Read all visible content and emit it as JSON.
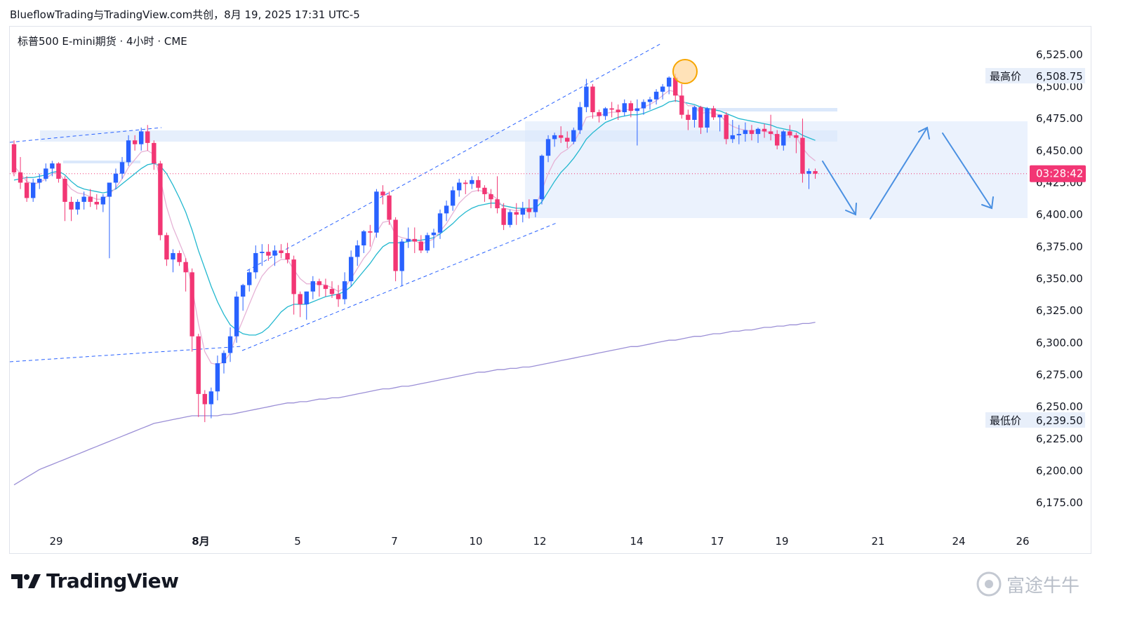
{
  "header": {
    "title": "BlueflowTrading与TradingView.com共创，8月 19, 2025 17:31 UTC-5"
  },
  "symbol_line": "标普500 E-mini期货 · 4小时 · CME",
  "price_axis": {
    "ticks": [
      "6,525.00",
      "6,500.00",
      "6,475.00",
      "6,450.00",
      "6,425.00",
      "6,400.00",
      "6,375.00",
      "6,350.00",
      "6,325.00",
      "6,300.00",
      "6,275.00",
      "6,250.00",
      "6,225.00",
      "6,200.00",
      "6,175.00"
    ],
    "high_label": "最高价",
    "high_value": "6,508.75",
    "low_label": "最低价",
    "low_value": "6,239.50",
    "current_label": "03:28:42"
  },
  "time_axis": {
    "labels": [
      "29",
      "8月",
      "5",
      "7",
      "10",
      "12",
      "14",
      "17",
      "19",
      "21",
      "24",
      "26"
    ]
  },
  "footer": {
    "logo_text": "TradingView",
    "watermark_text": "富途牛牛"
  },
  "colors": {
    "up": "#2962ff",
    "down": "#f23674",
    "ema_fast": "#e6b3d6",
    "ema_mid": "#22b8cf",
    "ema_slow": "#9b8fd6",
    "zone": "#dbe8fb",
    "arrow": "#4a90e2",
    "marker": "#f7a600"
  },
  "chart_data": {
    "type": "candlestick",
    "ylim": [
      6160,
      6535
    ],
    "candles": [
      [
        6455,
        6458,
        6430,
        6433
      ],
      [
        6433,
        6445,
        6420,
        6425
      ],
      [
        6425,
        6430,
        6410,
        6413
      ],
      [
        6413,
        6428,
        6410,
        6425
      ],
      [
        6425,
        6432,
        6420,
        6428
      ],
      [
        6428,
        6440,
        6426,
        6436
      ],
      [
        6436,
        6442,
        6430,
        6440
      ],
      [
        6440,
        6441,
        6425,
        6428
      ],
      [
        6428,
        6430,
        6395,
        6410
      ],
      [
        6410,
        6414,
        6395,
        6404
      ],
      [
        6404,
        6412,
        6400,
        6410
      ],
      [
        6410,
        6418,
        6404,
        6414
      ],
      [
        6414,
        6420,
        6406,
        6410
      ],
      [
        6410,
        6416,
        6404,
        6408
      ],
      [
        6408,
        6416,
        6402,
        6414
      ],
      [
        6414,
        6422,
        6366,
        6425
      ],
      [
        6425,
        6436,
        6420,
        6432
      ],
      [
        6432,
        6445,
        6428,
        6441
      ],
      [
        6441,
        6462,
        6438,
        6458
      ],
      [
        6458,
        6462,
        6450,
        6455
      ],
      [
        6455,
        6468,
        6450,
        6465
      ],
      [
        6465,
        6470,
        6450,
        6456
      ],
      [
        6456,
        6458,
        6435,
        6440
      ],
      [
        6440,
        6442,
        6380,
        6384
      ],
      [
        6384,
        6386,
        6360,
        6365
      ],
      [
        6365,
        6373,
        6355,
        6370
      ],
      [
        6370,
        6372,
        6360,
        6363
      ],
      [
        6363,
        6366,
        6340,
        6355
      ],
      [
        6355,
        6358,
        6293,
        6305
      ],
      [
        6305,
        6307,
        6242,
        6260
      ],
      [
        6260,
        6263,
        6238,
        6252
      ],
      [
        6252,
        6265,
        6241,
        6262
      ],
      [
        6262,
        6290,
        6255,
        6284
      ],
      [
        6284,
        6294,
        6276,
        6292
      ],
      [
        6292,
        6312,
        6285,
        6305
      ],
      [
        6305,
        6340,
        6300,
        6336
      ],
      [
        6336,
        6346,
        6325,
        6345
      ],
      [
        6345,
        6357,
        6340,
        6355
      ],
      [
        6355,
        6376,
        6350,
        6370
      ],
      [
        6370,
        6377,
        6360,
        6371
      ],
      [
        6371,
        6377,
        6364,
        6368
      ],
      [
        6368,
        6376,
        6360,
        6372
      ],
      [
        6372,
        6377,
        6366,
        6370
      ],
      [
        6370,
        6378,
        6362,
        6365
      ],
      [
        6365,
        6368,
        6322,
        6338
      ],
      [
        6338,
        6340,
        6320,
        6330
      ],
      [
        6330,
        6340,
        6318,
        6340
      ],
      [
        6340,
        6352,
        6334,
        6348
      ],
      [
        6348,
        6350,
        6336,
        6345
      ],
      [
        6345,
        6350,
        6336,
        6342
      ],
      [
        6342,
        6348,
        6335,
        6338
      ],
      [
        6338,
        6345,
        6328,
        6334
      ],
      [
        6334,
        6355,
        6330,
        6348
      ],
      [
        6348,
        6372,
        6344,
        6367
      ],
      [
        6367,
        6380,
        6360,
        6376
      ],
      [
        6376,
        6388,
        6370,
        6387
      ],
      [
        6387,
        6392,
        6375,
        6386
      ],
      [
        6386,
        6420,
        6382,
        6418
      ],
      [
        6418,
        6423,
        6408,
        6415
      ],
      [
        6415,
        6418,
        6392,
        6396
      ],
      [
        6396,
        6398,
        6348,
        6356
      ],
      [
        6356,
        6381,
        6344,
        6379
      ],
      [
        6379,
        6390,
        6374,
        6381
      ],
      [
        6381,
        6390,
        6370,
        6379
      ],
      [
        6379,
        6384,
        6370,
        6372
      ],
      [
        6372,
        6386,
        6370,
        6384
      ],
      [
        6384,
        6389,
        6374,
        6386
      ],
      [
        6386,
        6404,
        6381,
        6401
      ],
      [
        6401,
        6411,
        6395,
        6407
      ],
      [
        6407,
        6422,
        6403,
        6419
      ],
      [
        6419,
        6428,
        6414,
        6425
      ],
      [
        6425,
        6427,
        6416,
        6424
      ],
      [
        6424,
        6430,
        6420,
        6427
      ],
      [
        6427,
        6430,
        6418,
        6421
      ],
      [
        6421,
        6423,
        6410,
        6416
      ],
      [
        6416,
        6420,
        6405,
        6412
      ],
      [
        6412,
        6430,
        6401,
        6405
      ],
      [
        6405,
        6409,
        6388,
        6392
      ],
      [
        6392,
        6404,
        6390,
        6402
      ],
      [
        6402,
        6409,
        6392,
        6400
      ],
      [
        6400,
        6410,
        6394,
        6405
      ],
      [
        6405,
        6412,
        6397,
        6402
      ],
      [
        6402,
        6412,
        6398,
        6412
      ],
      [
        6412,
        6447,
        6408,
        6446
      ],
      [
        6446,
        6462,
        6441,
        6459
      ],
      [
        6459,
        6464,
        6453,
        6462
      ],
      [
        6462,
        6469,
        6456,
        6460
      ],
      [
        6460,
        6465,
        6452,
        6457
      ],
      [
        6457,
        6468,
        6455,
        6466
      ],
      [
        6466,
        6488,
        6463,
        6484
      ],
      [
        6484,
        6506,
        6480,
        6500
      ],
      [
        6500,
        6502,
        6475,
        6480
      ],
      [
        6480,
        6482,
        6472,
        6477
      ],
      [
        6477,
        6484,
        6474,
        6483
      ],
      [
        6483,
        6488,
        6476,
        6482
      ],
      [
        6482,
        6486,
        6474,
        6480
      ],
      [
        6480,
        6490,
        6477,
        6487
      ],
      [
        6487,
        6489,
        6476,
        6481
      ],
      [
        6481,
        6490,
        6454,
        6483
      ],
      [
        6483,
        6490,
        6478,
        6488
      ],
      [
        6488,
        6492,
        6482,
        6490
      ],
      [
        6490,
        6498,
        6486,
        6496
      ],
      [
        6496,
        6502,
        6490,
        6500
      ],
      [
        6500,
        6508,
        6494,
        6507
      ],
      [
        6507,
        6510,
        6488,
        6493
      ],
      [
        6493,
        6502,
        6475,
        6478
      ],
      [
        6478,
        6482,
        6466,
        6474
      ],
      [
        6474,
        6485,
        6468,
        6484
      ],
      [
        6484,
        6485,
        6463,
        6468
      ],
      [
        6468,
        6484,
        6464,
        6483
      ],
      [
        6483,
        6485,
        6474,
        6476
      ],
      [
        6476,
        6478,
        6465,
        6478
      ],
      [
        6478,
        6480,
        6455,
        6459
      ],
      [
        6459,
        6474,
        6456,
        6462
      ],
      [
        6462,
        6470,
        6455,
        6463
      ],
      [
        6463,
        6472,
        6457,
        6466
      ],
      [
        6466,
        6470,
        6458,
        6463
      ],
      [
        6463,
        6468,
        6456,
        6467
      ],
      [
        6467,
        6471,
        6460,
        6465
      ],
      [
        6465,
        6478,
        6458,
        6463
      ],
      [
        6463,
        6466,
        6451,
        6454
      ],
      [
        6454,
        6466,
        6450,
        6465
      ],
      [
        6465,
        6470,
        6460,
        6462
      ],
      [
        6462,
        6464,
        6448,
        6460
      ],
      [
        6460,
        6475,
        6425,
        6432
      ],
      [
        6432,
        6436,
        6420,
        6434
      ],
      [
        6434,
        6436,
        6428,
        6432
      ]
    ],
    "ema_fast": [
      6438,
      6432,
      6426,
      6424,
      6425,
      6428,
      6432,
      6433,
      6426,
      6420,
      6417,
      6416,
      6414,
      6412,
      6412,
      6416,
      6421,
      6428,
      6437,
      6443,
      6449,
      6450,
      6447,
      6428,
      6406,
      6390,
      6378,
      6366,
      6343,
      6315,
      6293,
      6284,
      6283,
      6285,
      6292,
      6306,
      6318,
      6330,
      6342,
      6352,
      6358,
      6362,
      6365,
      6365,
      6357,
      6350,
      6346,
      6346,
      6346,
      6345,
      6343,
      6340,
      6343,
      6350,
      6358,
      6366,
      6372,
      6386,
      6394,
      6395,
      6384,
      6382,
      6381,
      6380,
      6377,
      6379,
      6381,
      6387,
      6393,
      6401,
      6409,
      6414,
      6418,
      6419,
      6418,
      6416,
      6412,
      6405,
      6404,
      6403,
      6404,
      6403,
      6406,
      6419,
      6432,
      6442,
      6448,
      6451,
      6456,
      6465,
      6476,
      6477,
      6477,
      6479,
      6480,
      6480,
      6482,
      6482,
      6482,
      6484,
      6486,
      6489,
      6493,
      6497,
      6496,
      6490,
      6485,
      6485,
      6479,
      6480,
      6479,
      6478,
      6472,
      6469,
      6467,
      6466,
      6465,
      6466,
      6465,
      6464,
      6461,
      6462,
      6462,
      6461,
      6452,
      6446,
      6442
    ],
    "ema_mid": [
      6427,
      6428,
      6429,
      6429,
      6430,
      6431,
      6433,
      6434,
      6431,
      6426,
      6422,
      6420,
      6419,
      6418,
      6417,
      6418,
      6420,
      6424,
      6428,
      6432,
      6436,
      6439,
      6440,
      6438,
      6432,
      6423,
      6413,
      6402,
      6388,
      6372,
      6358,
      6344,
      6332,
      6322,
      6314,
      6310,
      6307,
      6306,
      6306,
      6308,
      6312,
      6318,
      6324,
      6328,
      6330,
      6330,
      6330,
      6332,
      6334,
      6336,
      6337,
      6338,
      6340,
      6344,
      6350,
      6356,
      6362,
      6369,
      6375,
      6378,
      6378,
      6378,
      6379,
      6380,
      6380,
      6381,
      6382,
      6385,
      6389,
      6393,
      6398,
      6402,
      6405,
      6407,
      6408,
      6409,
      6409,
      6407,
      6406,
      6405,
      6405,
      6405,
      6405,
      6410,
      6418,
      6426,
      6433,
      6438,
      6444,
      6451,
      6459,
      6464,
      6468,
      6472,
      6474,
      6476,
      6477,
      6478,
      6478,
      6479,
      6481,
      6483,
      6485,
      6488,
      6489,
      6488,
      6487,
      6486,
      6484,
      6483,
      6482,
      6481,
      6479,
      6477,
      6475,
      6474,
      6473,
      6472,
      6471,
      6470,
      6468,
      6467,
      6466,
      6465,
      6462,
      6460,
      6458
    ],
    "ema_slow": [
      6189,
      6192,
      6195,
      6198,
      6201,
      6203,
      6205,
      6207,
      6209,
      6211,
      6213,
      6215,
      6217,
      6219,
      6221,
      6223,
      6225,
      6227,
      6229,
      6231,
      6233,
      6235,
      6237,
      6238,
      6239,
      6240,
      6241,
      6242,
      6243,
      6243,
      6243,
      6243,
      6243,
      6244,
      6244,
      6245,
      6246,
      6247,
      6248,
      6249,
      6250,
      6251,
      6252,
      6253,
      6253,
      6254,
      6254,
      6255,
      6256,
      6256,
      6257,
      6257,
      6258,
      6259,
      6260,
      6261,
      6262,
      6263,
      6264,
      6264,
      6265,
      6266,
      6266,
      6267,
      6268,
      6269,
      6270,
      6271,
      6272,
      6273,
      6274,
      6275,
      6276,
      6277,
      6277,
      6278,
      6279,
      6279,
      6280,
      6280,
      6281,
      6281,
      6282,
      6283,
      6284,
      6285,
      6286,
      6287,
      6288,
      6289,
      6290,
      6291,
      6292,
      6293,
      6294,
      6295,
      6296,
      6297,
      6297,
      6298,
      6299,
      6300,
      6301,
      6302,
      6302,
      6303,
      6304,
      6305,
      6305,
      6306,
      6307,
      6307,
      6308,
      6309,
      6309,
      6310,
      6310,
      6311,
      6312,
      6312,
      6313,
      6313,
      6314,
      6314,
      6315,
      6315,
      6316
    ],
    "current_price": 6432,
    "high": 6508.75,
    "low": 6239.5
  }
}
